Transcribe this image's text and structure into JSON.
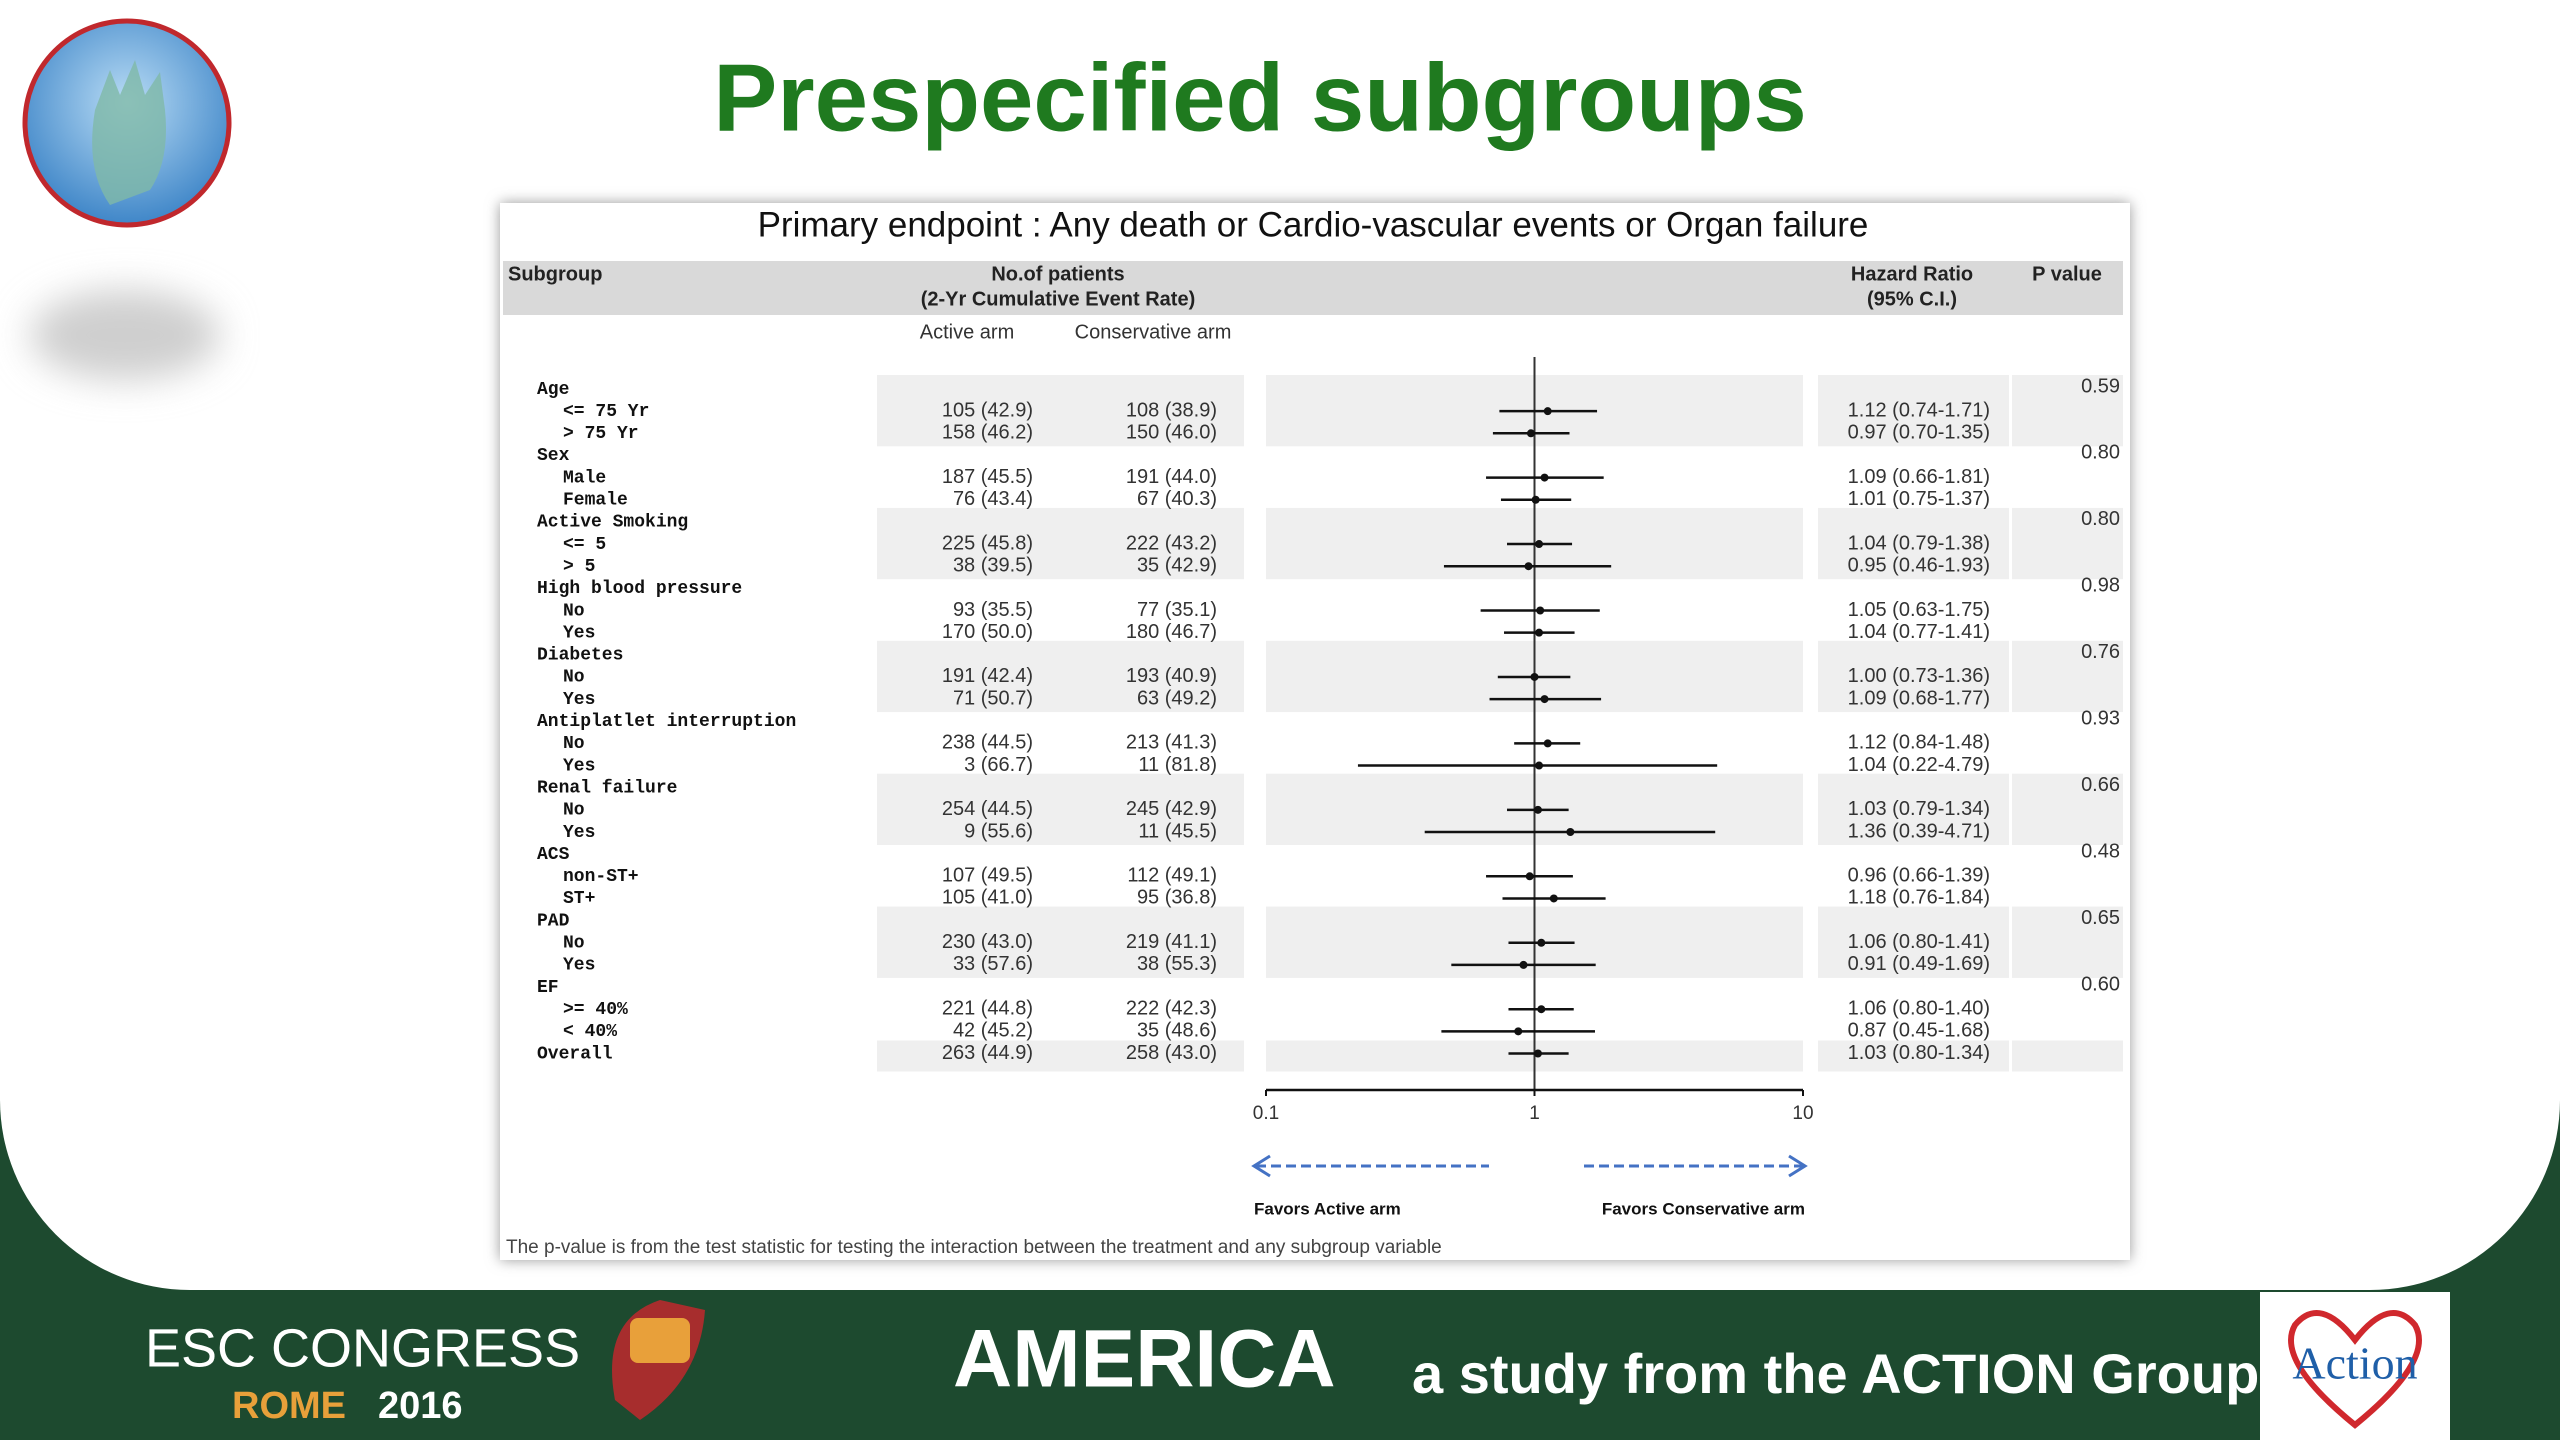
{
  "slide": {
    "title": "Prespecified subgroups"
  },
  "chart_data": {
    "type": "forest",
    "title": "Primary endpoint : Any death or Cardio-vascular events or Organ failure",
    "columns": {
      "subgroup": "Subgroup",
      "patients": "No.of patients",
      "patients_sub": "(2-Yr Cumulative Event Rate)",
      "active": "Active arm",
      "conservative": "Conservative arm",
      "hr": "Hazard Ratio",
      "hr_sub": "(95% C.I.)",
      "p": "P value"
    },
    "groups": [
      {
        "name": "Age",
        "p_value": "0.59",
        "rows": [
          {
            "label": "<= 75 Yr",
            "active": "105 (42.9)",
            "conservative": "108 (38.9)",
            "hr": 1.12,
            "lo": 0.74,
            "hi": 1.71,
            "hr_label": "1.12 (0.74-1.71)"
          },
          {
            "label": "> 75 Yr",
            "active": "158 (46.2)",
            "conservative": "150 (46.0)",
            "hr": 0.97,
            "lo": 0.7,
            "hi": 1.35,
            "hr_label": "0.97 (0.70-1.35)"
          }
        ]
      },
      {
        "name": "Sex",
        "p_value": "0.80",
        "rows": [
          {
            "label": "Male",
            "active": "187 (45.5)",
            "conservative": "191 (44.0)",
            "hr": 1.09,
            "lo": 0.66,
            "hi": 1.81,
            "hr_label": "1.09 (0.66-1.81)"
          },
          {
            "label": "Female",
            "active": "76 (43.4)",
            "conservative": "67 (40.3)",
            "hr": 1.01,
            "lo": 0.75,
            "hi": 1.37,
            "hr_label": "1.01 (0.75-1.37)"
          }
        ]
      },
      {
        "name": "Active Smoking",
        "p_value": "0.80",
        "rows": [
          {
            "label": "<= 5",
            "active": "225 (45.8)",
            "conservative": "222 (43.2)",
            "hr": 1.04,
            "lo": 0.79,
            "hi": 1.38,
            "hr_label": "1.04 (0.79-1.38)"
          },
          {
            "label": "> 5",
            "active": "38 (39.5)",
            "conservative": "35 (42.9)",
            "hr": 0.95,
            "lo": 0.46,
            "hi": 1.93,
            "hr_label": "0.95 (0.46-1.93)"
          }
        ]
      },
      {
        "name": "High blood pressure",
        "p_value": "0.98",
        "rows": [
          {
            "label": "No",
            "active": "93 (35.5)",
            "conservative": "77 (35.1)",
            "hr": 1.05,
            "lo": 0.63,
            "hi": 1.75,
            "hr_label": "1.05 (0.63-1.75)"
          },
          {
            "label": "Yes",
            "active": "170 (50.0)",
            "conservative": "180 (46.7)",
            "hr": 1.04,
            "lo": 0.77,
            "hi": 1.41,
            "hr_label": "1.04 (0.77-1.41)"
          }
        ]
      },
      {
        "name": "Diabetes",
        "p_value": "0.76",
        "rows": [
          {
            "label": "No",
            "active": "191 (42.4)",
            "conservative": "193 (40.9)",
            "hr": 1.0,
            "lo": 0.73,
            "hi": 1.36,
            "hr_label": "1.00 (0.73-1.36)"
          },
          {
            "label": "Yes",
            "active": "71 (50.7)",
            "conservative": "63 (49.2)",
            "hr": 1.09,
            "lo": 0.68,
            "hi": 1.77,
            "hr_label": "1.09 (0.68-1.77)"
          }
        ]
      },
      {
        "name": "Antiplatlet interruption",
        "p_value": "0.93",
        "rows": [
          {
            "label": "No",
            "active": "238 (44.5)",
            "conservative": "213 (41.3)",
            "hr": 1.12,
            "lo": 0.84,
            "hi": 1.48,
            "hr_label": "1.12 (0.84-1.48)"
          },
          {
            "label": "Yes",
            "active": "3 (66.7)",
            "conservative": "11 (81.8)",
            "hr": 1.04,
            "lo": 0.22,
            "hi": 4.79,
            "hr_label": "1.04 (0.22-4.79)"
          }
        ]
      },
      {
        "name": "Renal failure",
        "p_value": "0.66",
        "rows": [
          {
            "label": "No",
            "active": "254 (44.5)",
            "conservative": "245 (42.9)",
            "hr": 1.03,
            "lo": 0.79,
            "hi": 1.34,
            "hr_label": "1.03 (0.79-1.34)"
          },
          {
            "label": "Yes",
            "active": "9 (55.6)",
            "conservative": "11 (45.5)",
            "hr": 1.36,
            "lo": 0.39,
            "hi": 4.71,
            "hr_label": "1.36 (0.39-4.71)"
          }
        ]
      },
      {
        "name": "ACS",
        "p_value": "0.48",
        "rows": [
          {
            "label": "non-ST+",
            "active": "107 (49.5)",
            "conservative": "112 (49.1)",
            "hr": 0.96,
            "lo": 0.66,
            "hi": 1.39,
            "hr_label": "0.96 (0.66-1.39)"
          },
          {
            "label": "ST+",
            "active": "105 (41.0)",
            "conservative": "95 (36.8)",
            "hr": 1.18,
            "lo": 0.76,
            "hi": 1.84,
            "hr_label": "1.18 (0.76-1.84)"
          }
        ]
      },
      {
        "name": "PAD",
        "p_value": "0.65",
        "rows": [
          {
            "label": "No",
            "active": "230 (43.0)",
            "conservative": "219 (41.1)",
            "hr": 1.06,
            "lo": 0.8,
            "hi": 1.41,
            "hr_label": "1.06 (0.80-1.41)"
          },
          {
            "label": "Yes",
            "active": "33 (57.6)",
            "conservative": "38 (55.3)",
            "hr": 0.91,
            "lo": 0.49,
            "hi": 1.69,
            "hr_label": "0.91 (0.49-1.69)"
          }
        ]
      },
      {
        "name": "EF",
        "p_value": "0.60",
        "rows": [
          {
            "label": ">= 40%",
            "active": "221 (44.8)",
            "conservative": "222 (42.3)",
            "hr": 1.06,
            "lo": 0.8,
            "hi": 1.4,
            "hr_label": "1.06 (0.80-1.40)"
          },
          {
            "label": "< 40%",
            "active": "42 (45.2)",
            "conservative": "35 (48.6)",
            "hr": 0.87,
            "lo": 0.45,
            "hi": 1.68,
            "hr_label": "0.87 (0.45-1.68)"
          }
        ]
      }
    ],
    "overall": {
      "label": "Overall",
      "active": "263 (44.9)",
      "conservative": "258 (43.0)",
      "hr": 1.03,
      "lo": 0.8,
      "hi": 1.34,
      "hr_label": "1.03 (0.80-1.34)"
    },
    "xlim": [
      0.1,
      10
    ],
    "xticks": [
      0.1,
      1,
      10
    ],
    "log_x": true,
    "ref_line": 1,
    "favors_left": "Favors Active arm",
    "favors_right": "Favors Conservative arm",
    "footnote": "The p-value is from the test statistic for testing the interaction between the treatment and any subgroup variable"
  },
  "footer": {
    "congress": "ESC CONGRESS",
    "city": "ROME",
    "year": "2016",
    "study": "AMERICA",
    "tagline": "a study from the ACTION Group",
    "logo": "Action"
  }
}
